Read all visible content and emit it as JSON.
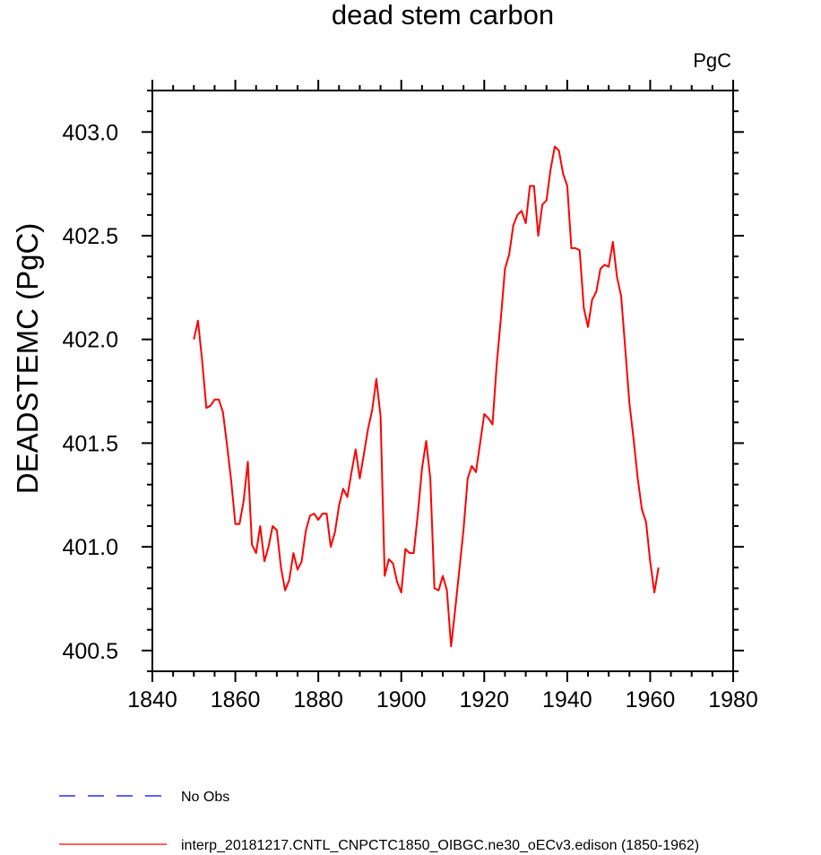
{
  "chart_data": {
    "type": "line",
    "title": "dead stem carbon",
    "units_label": "PgC",
    "xlabel": "",
    "ylabel": "DEADSTEMC  (PgC)",
    "xlim": [
      1840,
      1980
    ],
    "ylim": [
      400.4,
      403.2
    ],
    "x_ticks": [
      1840,
      1860,
      1880,
      1900,
      1920,
      1940,
      1960,
      1980
    ],
    "x_tick_labels": [
      "1840",
      "1860",
      "1880",
      "1900",
      "1920",
      "1940",
      "1960",
      "1980"
    ],
    "y_ticks": [
      400.5,
      401.0,
      401.5,
      402.0,
      402.5,
      403.0
    ],
    "y_tick_labels": [
      "400.5",
      "401.0",
      "401.5",
      "402.0",
      "402.5",
      "403.0"
    ],
    "grid": false,
    "legend_position": "bottom-left",
    "legend": [
      {
        "label": "No Obs",
        "color": "#0000ff",
        "dash": "dashed"
      },
      {
        "label": "interp_20181217.CNTL_CNPCTC1850_OIBGC.ne30_oECv3.edison (1850-1962)",
        "color": "#ff0000",
        "dash": "solid"
      }
    ],
    "series": [
      {
        "color": "#ff0000",
        "x": [
          1850,
          1851,
          1852,
          1853,
          1854,
          1855,
          1856,
          1857,
          1858,
          1859,
          1860,
          1861,
          1862,
          1863,
          1864,
          1865,
          1866,
          1867,
          1868,
          1869,
          1870,
          1871,
          1872,
          1873,
          1874,
          1875,
          1876,
          1877,
          1878,
          1879,
          1880,
          1881,
          1882,
          1883,
          1884,
          1885,
          1886,
          1887,
          1888,
          1889,
          1890,
          1891,
          1892,
          1893,
          1894,
          1895,
          1896,
          1897,
          1898,
          1899,
          1900,
          1901,
          1902,
          1903,
          1904,
          1905,
          1906,
          1907,
          1908,
          1909,
          1910,
          1911,
          1912,
          1913,
          1914,
          1915,
          1916,
          1917,
          1918,
          1919,
          1920,
          1921,
          1922,
          1923,
          1924,
          1925,
          1926,
          1927,
          1928,
          1929,
          1930,
          1931,
          1932,
          1933,
          1934,
          1935,
          1936,
          1937,
          1938,
          1939,
          1940,
          1941,
          1942,
          1943,
          1944,
          1945,
          1946,
          1947,
          1948,
          1949,
          1950,
          1951,
          1952,
          1953,
          1954,
          1955,
          1956,
          1957,
          1958,
          1959,
          1960,
          1961,
          1962
        ],
        "y": [
          402.0,
          402.09,
          401.9,
          401.67,
          401.68,
          401.71,
          401.71,
          401.65,
          401.49,
          401.32,
          401.11,
          401.11,
          401.22,
          401.41,
          401.01,
          400.97,
          401.1,
          400.93,
          401.0,
          401.1,
          401.08,
          400.9,
          400.79,
          400.84,
          400.97,
          400.89,
          400.93,
          401.08,
          401.15,
          401.16,
          401.13,
          401.16,
          401.16,
          401.0,
          401.07,
          401.2,
          401.28,
          401.24,
          401.36,
          401.47,
          401.33,
          401.45,
          401.57,
          401.66,
          401.81,
          401.63,
          400.86,
          400.94,
          400.92,
          400.83,
          400.78,
          400.99,
          400.97,
          400.97,
          401.16,
          401.38,
          401.51,
          401.33,
          400.8,
          400.79,
          400.86,
          400.79,
          400.52,
          400.7,
          400.89,
          401.08,
          401.33,
          401.39,
          401.36,
          401.5,
          401.64,
          401.62,
          401.59,
          401.88,
          402.1,
          402.34,
          402.41,
          402.55,
          402.6,
          402.62,
          402.56,
          402.74,
          402.74,
          402.5,
          402.65,
          402.67,
          402.82,
          402.93,
          402.91,
          402.8,
          402.74,
          402.44,
          402.44,
          402.43,
          402.15,
          402.06,
          402.19,
          402.23,
          402.34,
          402.36,
          402.35,
          402.47,
          402.3,
          402.21,
          401.95,
          401.69,
          401.52,
          401.33,
          401.18,
          401.12,
          400.93,
          400.78,
          400.9
        ]
      }
    ]
  }
}
